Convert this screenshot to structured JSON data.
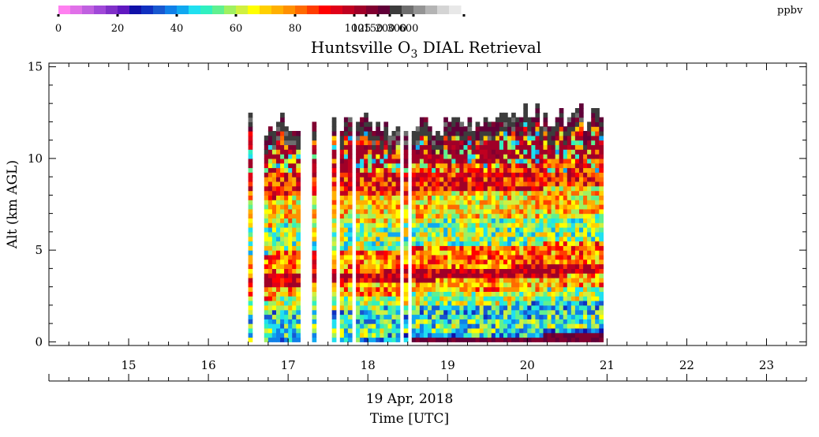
{
  "colorbar": {
    "unit": "ppbv",
    "colors": [
      "#ff80f0",
      "#e070e8",
      "#c060e0",
      "#a048d8",
      "#8030c8",
      "#6018c0",
      "#1010a8",
      "#1030c0",
      "#1858d0",
      "#1080e8",
      "#10a8f0",
      "#20e0f0",
      "#30f0c0",
      "#60f090",
      "#a0f060",
      "#d0f040",
      "#ffff00",
      "#ffd000",
      "#ffb000",
      "#ff9000",
      "#ff6a00",
      "#ff3c00",
      "#ff0000",
      "#e00018",
      "#c00020",
      "#a00028",
      "#800030",
      "#600038",
      "#3c3c3c",
      "#6e6e6e",
      "#949494",
      "#b4b4b4",
      "#d4d4d4",
      "#e8e8e8"
    ],
    "tick_labels": [
      {
        "label": "0",
        "index": 0
      },
      {
        "label": "20",
        "index": 5
      },
      {
        "label": "40",
        "index": 10
      },
      {
        "label": "60",
        "index": 15
      },
      {
        "label": "80",
        "index": 20
      },
      {
        "label": "100",
        "index": 25
      },
      {
        "label": "125",
        "index": 26
      },
      {
        "label": "150",
        "index": 27
      },
      {
        "label": "200",
        "index": 28
      },
      {
        "label": "300",
        "index": 29
      },
      {
        "label": "600",
        "index": 30
      }
    ]
  },
  "chart_data": {
    "type": "heatmap",
    "title": "Huntsville O3 DIAL Retrieval",
    "title_parts": {
      "pre": "Huntsville O",
      "sub": "3",
      "post": " DIAL Retrieval"
    },
    "ylabel": "Alt (km AGL)",
    "xlabel": "Time [UTC]",
    "date_label": "19 Apr, 2018",
    "xlim": [
      14,
      23.5
    ],
    "ylim": [
      -0.2,
      15.2
    ],
    "x_ticks": [
      15,
      16,
      17,
      18,
      19,
      20,
      21,
      22,
      23
    ],
    "y_ticks": [
      0,
      5,
      10,
      15
    ],
    "data_extent_hours": [
      16.5,
      20.95
    ],
    "gaps_hours": [
      [
        16.57,
        16.7
      ],
      [
        17.15,
        17.28
      ],
      [
        17.34,
        17.53
      ],
      [
        17.6,
        17.63
      ],
      [
        17.68,
        17.72
      ],
      [
        17.78,
        17.83
      ],
      [
        18.15,
        18.17
      ],
      [
        18.4,
        18.43
      ],
      [
        18.5,
        18.55
      ],
      [
        18.68,
        18.7
      ],
      [
        19.3,
        19.32
      ]
    ],
    "altitude_layers_km": [
      {
        "from": 0.0,
        "to": 0.3,
        "ppbv": 42
      },
      {
        "from": 0.3,
        "to": 1.0,
        "ppbv": 52
      },
      {
        "from": 1.0,
        "to": 1.8,
        "ppbv": 47
      },
      {
        "from": 1.8,
        "to": 2.5,
        "ppbv": 60
      },
      {
        "from": 2.5,
        "to": 3.2,
        "ppbv": 76
      },
      {
        "from": 3.2,
        "to": 3.8,
        "ppbv": 100
      },
      {
        "from": 3.8,
        "to": 5.0,
        "ppbv": 80
      },
      {
        "from": 5.0,
        "to": 6.5,
        "ppbv": 58
      },
      {
        "from": 6.5,
        "to": 8.0,
        "ppbv": 70
      },
      {
        "from": 8.0,
        "to": 9.5,
        "ppbv": 90
      },
      {
        "from": 9.5,
        "to": 10.8,
        "ppbv": 110
      },
      {
        "from": 10.8,
        "to": 12.0,
        "ppbv": 85
      },
      {
        "from": 12.0,
        "to": 13.5,
        "ppbv": 200
      }
    ],
    "grid": false
  }
}
